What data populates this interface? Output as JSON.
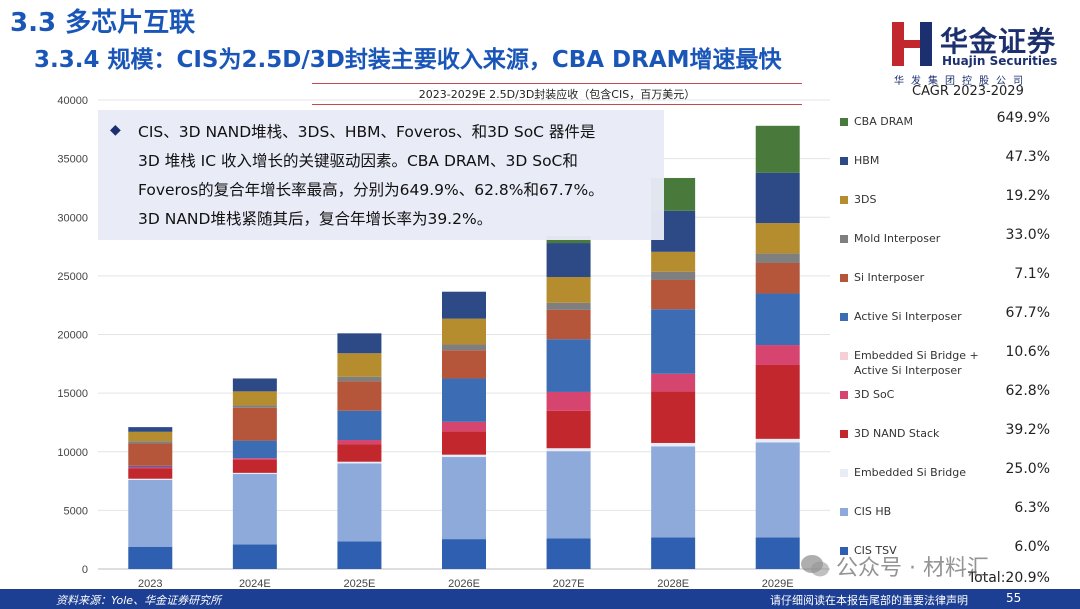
{
  "page": {
    "section_title": "3.3 多芯片互联",
    "subtitle": "3.3.4 规模：CIS为2.5D/3D封装主要收入来源，CBA DRAM增速最快",
    "callout_bullet": "◆",
    "callout_lines": [
      "CIS、3D NAND堆栈、3DS、HBM、Foveros、和3D SoC 器件是",
      "3D 堆栈 IC 收入增长的关键驱动因素。CBA DRAM、3D SoC和",
      "Foveros的复合年增长率最高，分别为649.9%、62.8%和67.7%。",
      "3D NAND堆栈紧随其后，复合年增长率为39.2%。"
    ],
    "footer_source": "资料来源：Yole、华金证券研究所",
    "footer_disclaimer": "请仔细阅读在本报告尾部的重要法律声明",
    "page_number": "55"
  },
  "logo": {
    "name_cn": "华金证券",
    "name_en": "Huajin Securities",
    "sub_cn": "华发集团控股公司"
  },
  "watermark": {
    "text": "公众号 · 材料汇"
  },
  "chart_data": {
    "type": "bar",
    "stacked": true,
    "title": "2023-2029E 2.5D/3D封装应收（包含CIS，百万美元）",
    "categories": [
      "2023",
      "2024E",
      "2025E",
      "2026E",
      "2027E",
      "2028E",
      "2029E"
    ],
    "ylim": [
      0,
      40000
    ],
    "yticks": [
      0,
      5000,
      10000,
      15000,
      20000,
      25000,
      30000,
      35000,
      40000
    ],
    "cagr_header": "CAGR 2023-2029",
    "total_cagr": "Total:20.9%",
    "series": [
      {
        "name": "CIS TSV",
        "cagr": "6.0%",
        "color": "#2e5fb0",
        "values": [
          1900,
          2100,
          2350,
          2550,
          2600,
          2700,
          2700
        ]
      },
      {
        "name": "CIS HB",
        "cagr": "6.3%",
        "color": "#8eaadb",
        "values": [
          5700,
          6000,
          6650,
          7000,
          7450,
          7750,
          8100
        ]
      },
      {
        "name": "Embedded Si Bridge",
        "cagr": "25.0%",
        "color": "#e7ecf7",
        "values": [
          100,
          100,
          150,
          200,
          250,
          300,
          300
        ]
      },
      {
        "name": "3D NAND Stack",
        "cagr": "39.2%",
        "color": "#c1272d",
        "values": [
          900,
          1100,
          1500,
          2000,
          3200,
          4400,
          6300
        ]
      },
      {
        "name": "3D SoC",
        "cagr": "62.8%",
        "color": "#d6456f",
        "values": [
          100,
          150,
          350,
          800,
          1600,
          1500,
          1700
        ]
      },
      {
        "name": "Embedded Si Bridge + Active Si Interposer",
        "cagr": "10.6%",
        "color": "#f4cfd8",
        "values": [
          0,
          0,
          0,
          0,
          0,
          0,
          0
        ]
      },
      {
        "name": "Active Si Interposer",
        "cagr": "67.7%",
        "color": "#3c6db4",
        "values": [
          100,
          1500,
          2500,
          3700,
          4500,
          5500,
          4400
        ]
      },
      {
        "name": "Si Interposer",
        "cagr": "7.1%",
        "color": "#b5563a",
        "values": [
          1900,
          2800,
          2500,
          2400,
          2500,
          2500,
          2600
        ]
      },
      {
        "name": "Mold Interposer",
        "cagr": "33.0%",
        "color": "#7f7f7f",
        "values": [
          200,
          200,
          400,
          500,
          600,
          700,
          800
        ]
      },
      {
        "name": "3DS",
        "cagr": "19.2%",
        "color": "#b58c2e",
        "values": [
          800,
          1200,
          2000,
          2200,
          2200,
          1700,
          2600
        ]
      },
      {
        "name": "HBM",
        "cagr": "47.3%",
        "color": "#2e4a86",
        "values": [
          400,
          1100,
          1700,
          2300,
          2900,
          3500,
          4300
        ]
      },
      {
        "name": "CBA DRAM",
        "cagr": "649.9%",
        "color": "#4a7a3b",
        "values": [
          0,
          0,
          0,
          0,
          600,
          2800,
          4000
        ]
      }
    ]
  }
}
